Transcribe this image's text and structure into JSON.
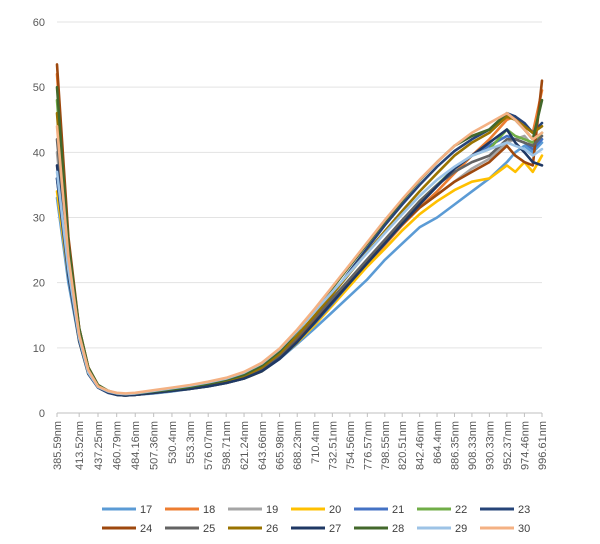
{
  "chart_data": {
    "type": "line",
    "title": "",
    "xlabel": "",
    "ylabel": "",
    "ylim": [
      0,
      60
    ],
    "yticks": [
      0,
      10,
      20,
      30,
      40,
      50,
      60
    ],
    "grid": true,
    "legend": "bottom",
    "x_labels": [
      "385.59nm",
      "413.52nm",
      "437.25nm",
      "460.79nm",
      "484.16nm",
      "507.36nm",
      "530.4nm",
      "553.3nm",
      "576.07nm",
      "598.71nm",
      "621.24nm",
      "643.66nm",
      "665.98nm",
      "688.23nm",
      "710.4nm",
      "732.51nm",
      "754.56nm",
      "776.57nm",
      "798.55nm",
      "820.51nm",
      "842.46nm",
      "864.4nm",
      "886.35nm",
      "908.33nm",
      "930.33nm",
      "952.37nm",
      "974.46nm",
      "996.61nm"
    ],
    "x": [
      385.59,
      400,
      413.52,
      425,
      437.25,
      450,
      460.79,
      472,
      484.16,
      507.36,
      530.4,
      553.3,
      576.07,
      598.71,
      621.24,
      643.66,
      665.98,
      688.23,
      710.4,
      732.51,
      754.56,
      776.57,
      798.55,
      820.51,
      842.46,
      864.4,
      886.35,
      908.33,
      930.33,
      952.37,
      963,
      974.46,
      985,
      996.61
    ],
    "series": [
      {
        "name": "17",
        "color": "#5B9BD5",
        "values": [
          33,
          20,
          11,
          6,
          4,
          3.2,
          2.8,
          2.7,
          2.8,
          3.0,
          3.3,
          3.7,
          4.1,
          4.6,
          5.3,
          6.4,
          8.3,
          10.6,
          13.0,
          15.5,
          18.0,
          20.5,
          23.5,
          26.0,
          28.5,
          30.0,
          32.0,
          34.0,
          36.0,
          38.5,
          40.0,
          41.0,
          40.0,
          41.5
        ]
      },
      {
        "name": "18",
        "color": "#ED7D31",
        "values": [
          52,
          26,
          13,
          7,
          4.2,
          3.3,
          2.9,
          2.7,
          2.8,
          3.1,
          3.4,
          3.8,
          4.2,
          4.7,
          5.4,
          6.5,
          8.5,
          11.0,
          13.8,
          16.8,
          19.8,
          22.8,
          25.8,
          28.8,
          31.5,
          34.0,
          36.8,
          39.5,
          42.0,
          45.0,
          45.5,
          44.0,
          43.0,
          49.5
        ]
      },
      {
        "name": "19",
        "color": "#A5A5A5",
        "values": [
          40,
          23,
          12,
          6.5,
          4,
          3.2,
          2.8,
          2.7,
          2.8,
          3.1,
          3.4,
          3.8,
          4.2,
          4.7,
          5.5,
          6.7,
          8.7,
          11.2,
          14.0,
          17.0,
          20.0,
          23.0,
          26.0,
          29.0,
          31.5,
          33.5,
          35.5,
          37.5,
          39.0,
          41.5,
          42.0,
          42.5,
          41.0,
          42.0
        ]
      },
      {
        "name": "20",
        "color": "#FFC000",
        "values": [
          34,
          21,
          11,
          6,
          4,
          3.2,
          2.8,
          2.7,
          2.8,
          3.1,
          3.4,
          3.7,
          4.1,
          4.6,
          5.3,
          6.4,
          8.4,
          10.8,
          13.5,
          16.5,
          19.5,
          22.5,
          25.2,
          28.0,
          30.5,
          32.5,
          34.2,
          35.5,
          36.0,
          38.0,
          37.0,
          38.5,
          37.0,
          39.5
        ]
      },
      {
        "name": "21",
        "color": "#4472C4",
        "values": [
          36,
          22,
          11.5,
          6.2,
          4,
          3.2,
          2.8,
          2.7,
          2.8,
          3.1,
          3.4,
          3.7,
          4.1,
          4.6,
          5.3,
          6.5,
          8.5,
          11.0,
          13.8,
          16.8,
          20.0,
          23.2,
          26.5,
          29.5,
          32.5,
          35.0,
          37.5,
          39.5,
          41.0,
          42.5,
          42.0,
          41.5,
          40.5,
          42.0
        ]
      },
      {
        "name": "22",
        "color": "#70AD47",
        "values": [
          48,
          25,
          12.5,
          6.8,
          4.2,
          3.3,
          2.9,
          2.8,
          2.9,
          3.2,
          3.5,
          3.9,
          4.3,
          4.8,
          5.6,
          6.8,
          8.8,
          11.5,
          14.5,
          17.5,
          20.5,
          23.5,
          26.5,
          29.5,
          32.5,
          35.0,
          37.5,
          39.5,
          40.5,
          43.5,
          42.5,
          42.0,
          41.5,
          43.0
        ]
      },
      {
        "name": "23",
        "color": "#264478",
        "values": [
          36,
          21,
          11,
          6,
          3.9,
          3.1,
          2.8,
          2.7,
          2.8,
          3.1,
          3.4,
          3.8,
          4.2,
          4.7,
          5.5,
          6.8,
          8.8,
          11.5,
          14.8,
          18.2,
          21.8,
          25.3,
          28.8,
          32.0,
          35.0,
          37.8,
          40.2,
          42.0,
          43.5,
          46.0,
          45.5,
          44.5,
          43.0,
          44.5
        ]
      },
      {
        "name": "24",
        "color": "#9E480E",
        "values": [
          53.5,
          27,
          13,
          7,
          4.3,
          3.3,
          2.9,
          2.8,
          2.9,
          3.2,
          3.5,
          3.9,
          4.3,
          4.9,
          5.7,
          6.9,
          8.9,
          11.5,
          14.3,
          17.3,
          20.3,
          23.3,
          26.3,
          29.0,
          31.5,
          33.5,
          35.5,
          37.0,
          38.5,
          41.0,
          39.5,
          38.5,
          38.0,
          51.0
        ]
      },
      {
        "name": "25",
        "color": "#636363",
        "values": [
          42,
          23,
          12,
          6.5,
          4,
          3.2,
          2.8,
          2.7,
          2.8,
          3.1,
          3.4,
          3.8,
          4.2,
          4.8,
          5.6,
          6.9,
          8.9,
          11.6,
          14.6,
          17.6,
          20.6,
          23.6,
          26.6,
          29.6,
          32.5,
          35.0,
          37.0,
          38.5,
          39.5,
          42.0,
          42.0,
          41.5,
          41.0,
          42.5
        ]
      },
      {
        "name": "26",
        "color": "#997300",
        "values": [
          46,
          24,
          12,
          6.6,
          4.1,
          3.3,
          2.9,
          2.8,
          2.9,
          3.2,
          3.5,
          3.9,
          4.3,
          4.9,
          5.7,
          7.0,
          9.1,
          11.9,
          15.0,
          18.2,
          21.5,
          24.7,
          27.9,
          31.0,
          34.0,
          36.8,
          39.5,
          41.5,
          43.0,
          45.5,
          45.0,
          44.0,
          43.0,
          44.0
        ]
      },
      {
        "name": "27",
        "color": "#1F3864",
        "values": [
          38,
          22,
          11.5,
          6.2,
          4,
          3.2,
          2.8,
          2.7,
          2.8,
          3.1,
          3.4,
          3.7,
          4.1,
          4.6,
          5.3,
          6.4,
          8.3,
          10.9,
          13.9,
          17.0,
          20.0,
          23.0,
          26.0,
          29.0,
          32.0,
          34.8,
          37.5,
          39.5,
          41.5,
          43.5,
          41.5,
          40.0,
          38.5,
          38.0
        ]
      },
      {
        "name": "28",
        "color": "#43682B",
        "values": [
          50,
          26,
          13,
          7,
          4.3,
          3.4,
          3.0,
          2.9,
          3.0,
          3.3,
          3.6,
          4.0,
          4.5,
          5.1,
          5.9,
          7.3,
          9.5,
          12.5,
          15.8,
          19.2,
          22.6,
          26.0,
          29.4,
          32.6,
          35.7,
          38.5,
          41.0,
          42.5,
          43.5,
          46.0,
          45.0,
          43.5,
          42.0,
          48.0
        ]
      },
      {
        "name": "29",
        "color": "#9DC3E6",
        "values": [
          37,
          22,
          11.5,
          6.2,
          4,
          3.3,
          3.0,
          2.9,
          3.0,
          3.4,
          3.8,
          4.2,
          4.7,
          5.3,
          6.2,
          7.6,
          9.8,
          12.6,
          15.6,
          18.6,
          21.6,
          24.6,
          27.6,
          30.5,
          33.3,
          35.8,
          37.8,
          39.5,
          40.5,
          41.5,
          41.0,
          40.5,
          39.5,
          40.5
        ]
      },
      {
        "name": "30",
        "color": "#F4B183",
        "values": [
          44,
          24,
          12,
          6.6,
          4.1,
          3.4,
          3.1,
          3.0,
          3.1,
          3.5,
          3.9,
          4.3,
          4.8,
          5.4,
          6.3,
          7.7,
          9.9,
          12.8,
          16.0,
          19.4,
          22.8,
          26.2,
          29.6,
          32.8,
          35.8,
          38.5,
          41.0,
          43.0,
          44.5,
          46.0,
          45.0,
          43.5,
          42.0,
          43.0
        ]
      }
    ]
  }
}
